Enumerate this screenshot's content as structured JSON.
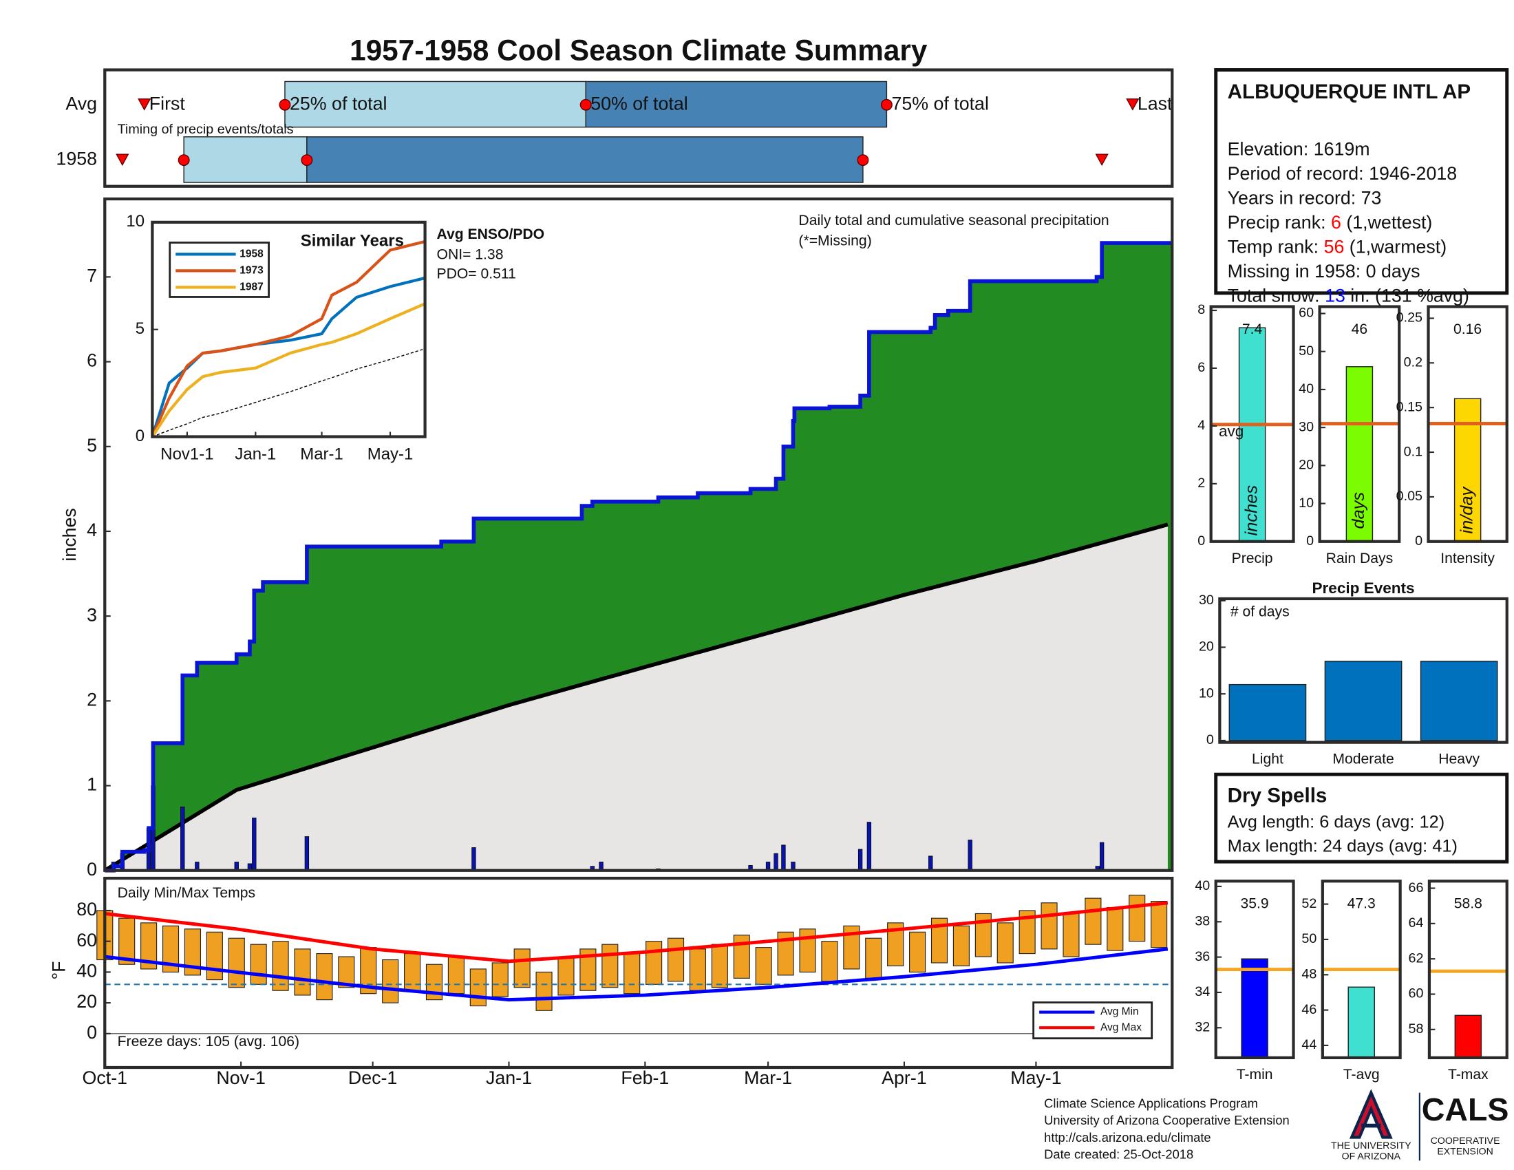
{
  "title": "1957-1958 Cool Season Climate Summary",
  "chart_data": [
    {
      "type": "timing",
      "xlim": [
        0,
        243
      ],
      "subtitle": "Timing of precip events/totals",
      "labels": [
        "First",
        "25% of total",
        "50% of total",
        "75% of total",
        "Last"
      ],
      "rows": [
        {
          "name": "Avg",
          "first": 9,
          "q25": 41,
          "q50": 109.5,
          "q75": 178,
          "last": 234
        },
        {
          "name": "1958",
          "first": 4,
          "q25": 18,
          "q50": 46,
          "q75": 172.6,
          "last": 227
        }
      ],
      "light_color": "#add8e6",
      "dark_color": "#4682b4",
      "marker_color": "#ff0000"
    },
    {
      "type": "area",
      "xlim": [
        0,
        243
      ],
      "ylim": [
        0,
        7.92
      ],
      "yticks": [
        0,
        1,
        2,
        3,
        4,
        5,
        6,
        7
      ],
      "ylabel": "inches",
      "note": "Daily total and cumulative seasonal precipitation",
      "missing_note": "(*=Missing)",
      "enso_title": "Avg ENSO/PDO",
      "oni": "ONI= 1.38",
      "pdo": "PDO= 0.511",
      "cumulative": {
        "color": "#0a14d4",
        "fill": "#228b22",
        "x": [
          0,
          2,
          4,
          9,
          10,
          11,
          17.7,
          21,
          30,
          33,
          34,
          36,
          46,
          76.6,
          84,
          108.6,
          111,
          126,
          135,
          147,
          152.8,
          154.5,
          156.7,
          157,
          165,
          172,
          174,
          188,
          189,
          192,
          197,
          225.8,
          227,
          243
        ],
        "values": [
          0,
          0.05,
          0.22,
          0.24,
          0.5,
          1.5,
          2.3,
          2.45,
          2.55,
          2.7,
          3.3,
          3.4,
          3.82,
          3.88,
          4.15,
          4.3,
          4.35,
          4.4,
          4.45,
          4.5,
          4.62,
          5.0,
          5.3,
          5.45,
          5.47,
          5.6,
          6.35,
          6.4,
          6.55,
          6.6,
          6.95,
          7.0,
          7.4,
          7.4
        ]
      },
      "average": {
        "color": "#000000",
        "fill": "#e8e6e5",
        "x": [
          0,
          30,
          61,
          92,
          123,
          151,
          182,
          212,
          242
        ],
        "values": [
          0,
          0.95,
          1.45,
          1.95,
          2.4,
          2.8,
          3.25,
          3.65,
          4.08
        ]
      },
      "daily": {
        "color": "#0a14aa",
        "x": [
          2,
          4,
          10,
          11,
          17.7,
          21,
          30,
          33,
          34,
          46,
          84,
          111,
          113,
          126,
          147,
          151,
          152.8,
          154.5,
          156.7,
          172,
          174,
          188,
          197,
          226,
          227
        ],
        "values": [
          0.1,
          0.2,
          0.5,
          1.0,
          0.75,
          0.1,
          0.1,
          0.08,
          0.62,
          0.4,
          0.27,
          0.05,
          0.1,
          0.02,
          0.06,
          0.1,
          0.2,
          0.3,
          0.1,
          0.25,
          0.57,
          0.17,
          0.36,
          0.05,
          0.33
        ]
      }
    },
    {
      "type": "line",
      "title": "Similar Years",
      "xlim": [
        0,
        243
      ],
      "ylim": [
        0,
        10
      ],
      "yticks": [
        0,
        5,
        10
      ],
      "xticks": [
        {
          "value": 31,
          "label": "Nov1-1"
        },
        {
          "value": 92,
          "label": "Jan-1"
        },
        {
          "value": 151,
          "label": "Mar-1"
        },
        {
          "value": 212,
          "label": "May-1"
        }
      ],
      "x": [
        0,
        15,
        31,
        45,
        61,
        92,
        123,
        151,
        160,
        182,
        212,
        243
      ],
      "series": [
        {
          "name": "1958",
          "color": "#0072bd",
          "values": [
            0,
            2.5,
            3.2,
            3.9,
            4.0,
            4.3,
            4.5,
            4.8,
            5.5,
            6.5,
            7.0,
            7.4
          ]
        },
        {
          "name": "1973",
          "color": "#d95319",
          "values": [
            0,
            1.8,
            3.3,
            3.9,
            4.0,
            4.3,
            4.7,
            5.5,
            6.6,
            7.2,
            8.7,
            9.1
          ]
        },
        {
          "name": "1987",
          "color": "#edb120",
          "values": [
            0,
            1.2,
            2.2,
            2.8,
            3.0,
            3.2,
            3.9,
            4.3,
            4.4,
            4.8,
            5.5,
            6.2
          ]
        }
      ],
      "average": {
        "color": "#000000",
        "values": [
          0,
          0.3,
          0.6,
          0.9,
          1.1,
          1.6,
          2.1,
          2.6,
          2.75,
          3.15,
          3.6,
          4.1
        ]
      }
    },
    {
      "type": "bar",
      "categories": [
        "Precip"
      ],
      "values": [
        7.4
      ],
      "color": "#40e0d0",
      "ylim": [
        0,
        8.13
      ],
      "yticks": [
        0,
        2,
        4,
        6,
        8
      ],
      "avg": 4.05,
      "avg_label": "avg",
      "avg_color": "#e0601e",
      "unit": "inches",
      "show_values": true
    },
    {
      "type": "bar",
      "categories": [
        "Rain Days"
      ],
      "values": [
        46
      ],
      "color": "#7cfc00",
      "ylim": [
        0,
        61.8
      ],
      "yticks": [
        0,
        10,
        20,
        30,
        40,
        50,
        60
      ],
      "avg": 31,
      "avg_color": "#e0601e",
      "unit": "days",
      "show_values": true
    },
    {
      "type": "bar",
      "categories": [
        "Intensity"
      ],
      "values": [
        0.16
      ],
      "color": "#ffd700",
      "ylim": [
        0,
        0.263
      ],
      "yticks": [
        0,
        0.05,
        0.1,
        0.15,
        0.2,
        0.25
      ],
      "avg": 0.132,
      "avg_color": "#e0601e",
      "unit": "in/day",
      "show_values": true
    },
    {
      "type": "bar",
      "title": "Precip Events",
      "inner_label": "# of days",
      "categories": [
        "Light",
        "Moderate",
        "Heavy"
      ],
      "values": [
        12,
        17,
        17
      ],
      "color": "#0072bd",
      "ylim": [
        -0.4,
        30.4
      ],
      "yticks": [
        0,
        10,
        20,
        30
      ]
    },
    {
      "type": "minmax",
      "title": "Daily Min/Max Temps",
      "ylabel": "°F",
      "xlim": [
        0,
        243
      ],
      "ylim": [
        -22,
        101
      ],
      "yticks": [
        0,
        20,
        40,
        60,
        80
      ],
      "xticks": [
        {
          "value": 0,
          "label": "Oct-1"
        },
        {
          "value": 31,
          "label": "Nov-1"
        },
        {
          "value": 61,
          "label": "Dec-1"
        },
        {
          "value": 92,
          "label": "Jan-1"
        },
        {
          "value": 123,
          "label": "Feb-1"
        },
        {
          "value": 151,
          "label": "Mar-1"
        },
        {
          "value": 182,
          "label": "Apr-1"
        },
        {
          "value": 212,
          "label": "May-1"
        }
      ],
      "freeze": 32,
      "freeze_note": "Freeze days: 105 (avg. 106)",
      "bar_color": "#f0a020",
      "x": [
        0,
        5,
        10,
        15,
        20,
        25,
        30,
        35,
        40,
        45,
        50,
        55,
        60,
        65,
        70,
        75,
        80,
        85,
        90,
        95,
        100,
        105,
        110,
        115,
        120,
        125,
        130,
        135,
        140,
        145,
        150,
        155,
        160,
        165,
        170,
        175,
        180,
        185,
        190,
        195,
        200,
        205,
        210,
        215,
        220,
        225,
        230,
        235,
        240
      ],
      "max": [
        80,
        75,
        72,
        70,
        68,
        66,
        62,
        58,
        60,
        55,
        52,
        50,
        56,
        48,
        52,
        45,
        50,
        42,
        46,
        55,
        40,
        50,
        55,
        58,
        52,
        60,
        62,
        55,
        58,
        64,
        56,
        66,
        68,
        60,
        70,
        62,
        72,
        66,
        75,
        70,
        78,
        72,
        80,
        85,
        78,
        88,
        82,
        90,
        86
      ],
      "min": [
        48,
        45,
        42,
        40,
        38,
        35,
        30,
        32,
        28,
        25,
        22,
        30,
        26,
        20,
        28,
        22,
        26,
        18,
        24,
        30,
        15,
        25,
        28,
        30,
        26,
        32,
        34,
        28,
        30,
        36,
        32,
        38,
        40,
        34,
        42,
        36,
        44,
        40,
        46,
        44,
        50,
        46,
        52,
        55,
        50,
        58,
        54,
        60,
        56
      ],
      "series": [
        {
          "name": "Avg Min",
          "color": "#0000ff",
          "x": [
            0,
            30,
            61,
            92,
            123,
            151,
            182,
            212,
            242
          ],
          "values": [
            50,
            40,
            30,
            22,
            25,
            30,
            37,
            45,
            55
          ]
        },
        {
          "name": "Avg Max",
          "color": "#ff0000",
          "x": [
            0,
            30,
            61,
            92,
            123,
            151,
            182,
            212,
            242
          ],
          "values": [
            78,
            68,
            55,
            47,
            53,
            60,
            68,
            76,
            85
          ]
        }
      ]
    },
    {
      "type": "bar",
      "categories": [
        "T-min"
      ],
      "values": [
        35.9
      ],
      "color": "#0000ff",
      "ylim": [
        30.3,
        40.3
      ],
      "yticks": [
        32,
        34,
        36,
        38,
        40
      ],
      "avg": 35.3,
      "avg_color": "#f5a623",
      "show_values": true
    },
    {
      "type": "bar",
      "categories": [
        "T-avg"
      ],
      "values": [
        47.3
      ],
      "color": "#40e0d0",
      "ylim": [
        43.3,
        53.3
      ],
      "yticks": [
        44,
        46,
        48,
        50,
        52
      ],
      "avg": 48.3,
      "avg_color": "#f5a623",
      "show_values": true
    },
    {
      "type": "bar",
      "categories": [
        "T-max"
      ],
      "values": [
        58.8
      ],
      "color": "#ff0000",
      "ylim": [
        56.4,
        66.4
      ],
      "yticks": [
        58,
        60,
        62,
        64,
        66
      ],
      "avg": 61.3,
      "avg_color": "#f5a623",
      "show_values": true
    }
  ],
  "station": {
    "name": "ALBUQUERQUE INTL AP",
    "lines": [
      [
        "Elevation: 1619m"
      ],
      [
        "Period of record: 1946-2018"
      ],
      [
        "Years in record: 73"
      ],
      [
        "Precip rank: ",
        "6",
        " (1,wettest)"
      ],
      [
        "Temp rank: ",
        "56",
        " (1,warmest)"
      ],
      [
        "Missing in 1958: 0 days"
      ],
      [
        "Total snow: ",
        "13",
        " in. (131 %avg)"
      ]
    ]
  },
  "dry_spells": {
    "title": "Dry Spells",
    "lines": [
      "Avg length: 6 days (avg: 12)",
      "Max length: 24 days (avg: 41)"
    ]
  },
  "footer": {
    "lines": [
      "Climate Science Applications Program",
      "University of Arizona Cooperative Extension",
      "http://cals.arizona.edu/climate",
      " Date created: 25-Oct-2018"
    ],
    "university": [
      "THE UNIVERSITY",
      "OF ARIZONA"
    ],
    "cals": "CALS",
    "cals_sub": [
      "COOPERATIVE",
      "EXTENSION"
    ]
  }
}
